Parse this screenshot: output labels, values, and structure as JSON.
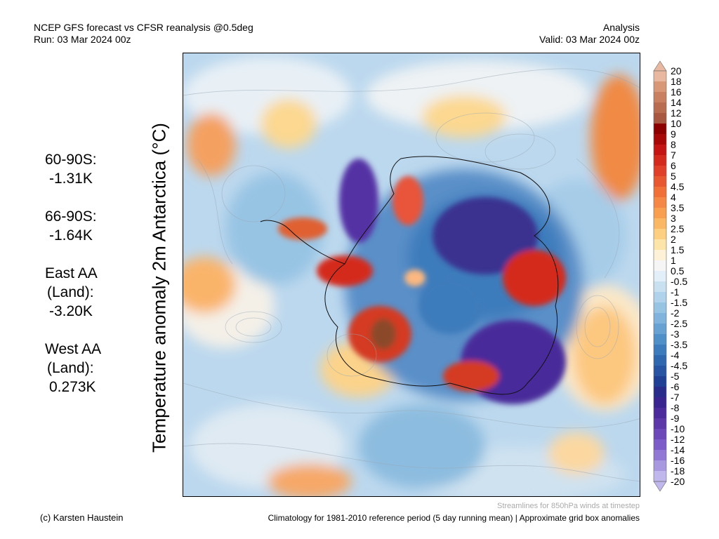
{
  "header": {
    "title": "NCEP GFS forecast vs CFSR reanalysis @0.5deg",
    "run": "Run: 03 Mar 2024 00z",
    "mode": "Analysis",
    "valid": "Valid: 03 Mar 2024 00z"
  },
  "map": {
    "ylabel": "Temperature anomaly 2m Antarctica (°C)",
    "region": "Antarctica / Southern Ocean"
  },
  "stats": [
    {
      "label_lines": [
        "60-90S:"
      ],
      "value": "-1.31K"
    },
    {
      "label_lines": [
        "66-90S:"
      ],
      "value": "-1.64K"
    },
    {
      "label_lines": [
        "East AA",
        "(Land):"
      ],
      "value": "-3.20K"
    },
    {
      "label_lines": [
        "West AA",
        "(Land):"
      ],
      "value": "0.273K"
    }
  ],
  "colorbar": {
    "labels": [
      "20",
      "18",
      "16",
      "14",
      "12",
      "10",
      "9",
      "8",
      "7",
      "6",
      "5",
      "4.5",
      "4",
      "3.5",
      "3",
      "2.5",
      "2",
      "1.5",
      "1",
      "0.5",
      "-0.5",
      "-1",
      "-1.5",
      "-2",
      "-2.5",
      "-3",
      "-3.5",
      "-4",
      "-4.5",
      "-5",
      "-6",
      "-7",
      "-8",
      "-9",
      "-10",
      "-12",
      "-14",
      "-16",
      "-18",
      "-20"
    ],
    "colors": [
      "#e8b8a0",
      "#d89878",
      "#c88060",
      "#b86c50",
      "#a85840",
      "#8c0000",
      "#a80808",
      "#c41414",
      "#d42a1e",
      "#e0402a",
      "#e85830",
      "#f07038",
      "#f48844",
      "#f8a050",
      "#fab864",
      "#fcd080",
      "#fde4a8",
      "#fdf2d8",
      "#f5f5f5",
      "#e2eef8",
      "#c8e0f0",
      "#b0d2ea",
      "#98c4e4",
      "#80b4dc",
      "#68a2d2",
      "#5090c8",
      "#3c7cbc",
      "#3068b0",
      "#2854a4",
      "#204096",
      "#2a2c8c",
      "#3a2490",
      "#4c2c9c",
      "#5c38a8",
      "#6c48b8",
      "#7c5cc8",
      "#9078d4",
      "#a898e0",
      "#c0b8ec"
    ]
  },
  "footer": {
    "credit": "(c) Karsten Haustein",
    "streamlines_note": "Streamlines for 850hPa winds at timestep",
    "climatology": "Climatology for 1981-2010 reference period (5 day running mean) | Approximate grid box anomalies"
  }
}
